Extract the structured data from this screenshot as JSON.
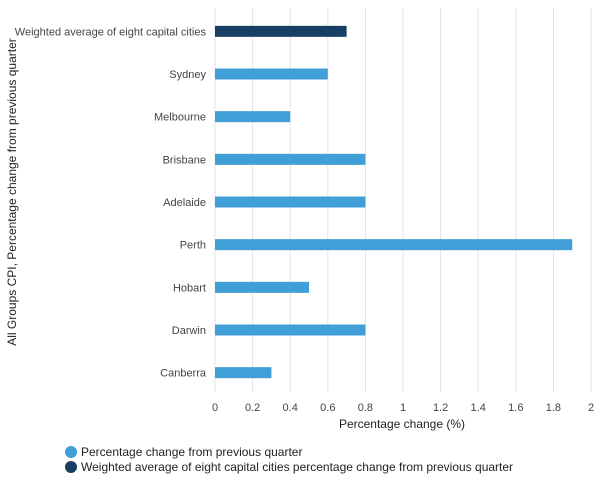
{
  "chart_data": {
    "type": "bar",
    "orientation": "horizontal",
    "categories": [
      "Weighted average of eight capital cities",
      "Sydney",
      "Melbourne",
      "Brisbane",
      "Adelaide",
      "Perth",
      "Hobart",
      "Darwin",
      "Canberra"
    ],
    "values": [
      0.7,
      0.6,
      0.4,
      0.8,
      0.8,
      1.9,
      0.5,
      0.8,
      0.3
    ],
    "series": [
      {
        "name": "Percentage change from previous quarter",
        "color": "#3f9fd6"
      },
      {
        "name": "Weighted average of eight capital cities percentage change from previous quarter",
        "color": "#173f63"
      }
    ],
    "bar_series_index": [
      1,
      0,
      0,
      0,
      0,
      0,
      0,
      0,
      0
    ],
    "xlabel": "Percentage change (%)",
    "ylabel": "All Groups CPI, Percentage change from previous quarter",
    "xlim": [
      0,
      2
    ],
    "xticks": [
      "0",
      "0.2",
      "0.4",
      "0.6",
      "0.8",
      "1",
      "1.2",
      "1.4",
      "1.6",
      "1.8",
      "2"
    ],
    "grid": "vertical",
    "legend_position": "bottom-left"
  }
}
